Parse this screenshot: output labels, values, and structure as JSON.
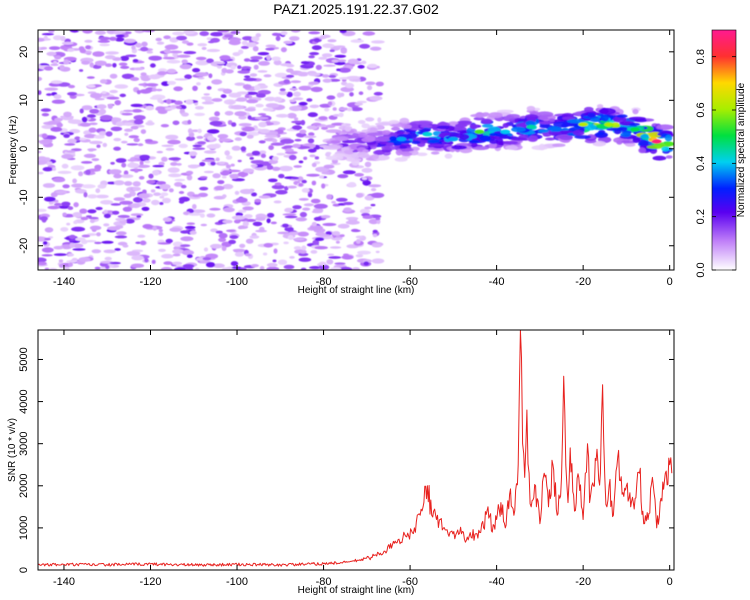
{
  "title": "PAZ1.2025.191.22.37.G02",
  "chart_data": [
    {
      "type": "heatmap",
      "name": "spectrogram",
      "xlabel": "Height of straight line (km)",
      "ylabel": "Frequency (Hz)",
      "xlim": [
        -146,
        1
      ],
      "ylim": [
        -25,
        24.5
      ],
      "xticks": [
        -140,
        -120,
        -100,
        -80,
        -60,
        -40,
        -20,
        0
      ],
      "yticks": [
        -20,
        -10,
        0,
        10,
        20
      ],
      "grid": false,
      "colorbar": {
        "label": "Normalized spectral amplitude",
        "range": [
          0.0,
          0.9
        ],
        "ticks": [
          0.0,
          0.2,
          0.4,
          0.6,
          0.8
        ]
      },
      "noise_region": {
        "x_range": [
          -146,
          -67
        ],
        "level": [
          0.0,
          0.18
        ]
      },
      "signal_ridge": {
        "x": [
          -78,
          -70,
          -62,
          -56,
          -50,
          -44,
          -38,
          -32,
          -26,
          -20,
          -14,
          -8,
          -3,
          0
        ],
        "frequency": [
          2.0,
          0.8,
          2.0,
          3.0,
          2.0,
          3.5,
          3.5,
          4.5,
          4.0,
          5.0,
          5.0,
          4.0,
          1.5,
          1.0
        ],
        "amplitude": [
          0.15,
          0.22,
          0.38,
          0.42,
          0.38,
          0.55,
          0.4,
          0.45,
          0.35,
          0.62,
          0.6,
          0.5,
          0.88,
          0.55
        ]
      }
    },
    {
      "type": "line",
      "name": "snr",
      "xlabel": "Height of straight line (km)",
      "ylabel": "SNR (10 * v/v)",
      "xlim": [
        -146,
        1
      ],
      "ylim": [
        0,
        5700
      ],
      "xticks": [
        -140,
        -120,
        -100,
        -80,
        -60,
        -40,
        -20,
        0
      ],
      "yticks": [
        0,
        1000,
        2000,
        3000,
        4000,
        5000
      ],
      "grid": false,
      "color": "#e8221f",
      "x": [
        -146,
        -140,
        -130,
        -120,
        -110,
        -100,
        -90,
        -80,
        -75,
        -72,
        -69,
        -66,
        -63,
        -61,
        -59,
        -57,
        -56,
        -55,
        -53,
        -51,
        -49,
        -47,
        -45,
        -43,
        -42,
        -41,
        -40,
        -39,
        -38,
        -37,
        -36,
        -35,
        -34.5,
        -34,
        -33.5,
        -33,
        -32.5,
        -32,
        -31,
        -30,
        -29,
        -28,
        -27,
        -26,
        -25,
        -24.5,
        -24,
        -23.5,
        -23,
        -22,
        -21,
        -20,
        -19.5,
        -19,
        -18.5,
        -18,
        -17,
        -16,
        -15.5,
        -15,
        -14.5,
        -14,
        -13,
        -12,
        -11,
        -10,
        -9,
        -8,
        -7,
        -6,
        -5,
        -4,
        -3,
        -2,
        -1,
        0,
        0.5
      ],
      "values": [
        120,
        130,
        125,
        140,
        120,
        130,
        120,
        150,
        180,
        230,
        300,
        450,
        650,
        800,
        1000,
        1500,
        2000,
        1300,
        1200,
        800,
        950,
        700,
        850,
        1000,
        1500,
        900,
        1200,
        1600,
        1000,
        1800,
        1300,
        2500,
        5700,
        3000,
        2200,
        3800,
        2300,
        1500,
        2000,
        1100,
        2300,
        1500,
        2500,
        1300,
        2200,
        4600,
        2500,
        1600,
        2900,
        1400,
        2200,
        1200,
        2300,
        3000,
        1600,
        2000,
        2600,
        2300,
        4400,
        2200,
        1500,
        2000,
        1300,
        2700,
        1800,
        2000,
        1500,
        1700,
        2300,
        1100,
        1200,
        2200,
        1000,
        1700,
        2300,
        2500,
        2300
      ]
    }
  ]
}
